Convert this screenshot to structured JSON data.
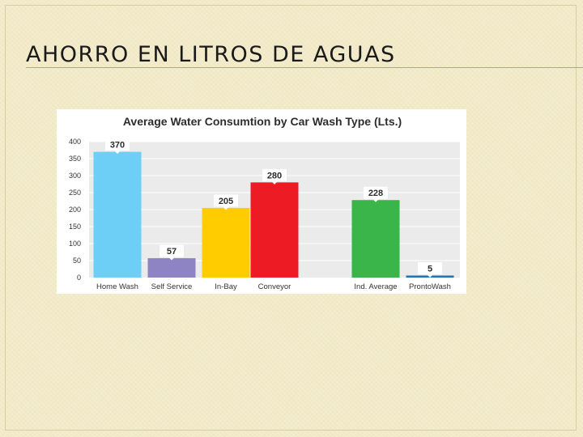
{
  "slide": {
    "title": "AHORRO EN LITROS DE AGUAS"
  },
  "chart_data": {
    "type": "bar",
    "title": "Average Water Consumtion by Car Wash Type (Lts.)",
    "xlabel": "",
    "ylabel": "",
    "ylim": [
      0,
      400
    ],
    "yticks": [
      0,
      50,
      100,
      150,
      200,
      250,
      300,
      350,
      400
    ],
    "grid": true,
    "legend": "none",
    "categories": [
      "Home Wash",
      "Self Service",
      "In-Bay",
      "Conveyor",
      "Ind. Average",
      "ProntoWash"
    ],
    "values": [
      370,
      57,
      205,
      280,
      228,
      5
    ],
    "colors": [
      "#6dcff6",
      "#8e84c4",
      "#ffcc00",
      "#ed1c24",
      "#39b54a",
      "#1b75bb"
    ],
    "plot_background": "#ebebeb",
    "label_background": "#ffffff"
  }
}
